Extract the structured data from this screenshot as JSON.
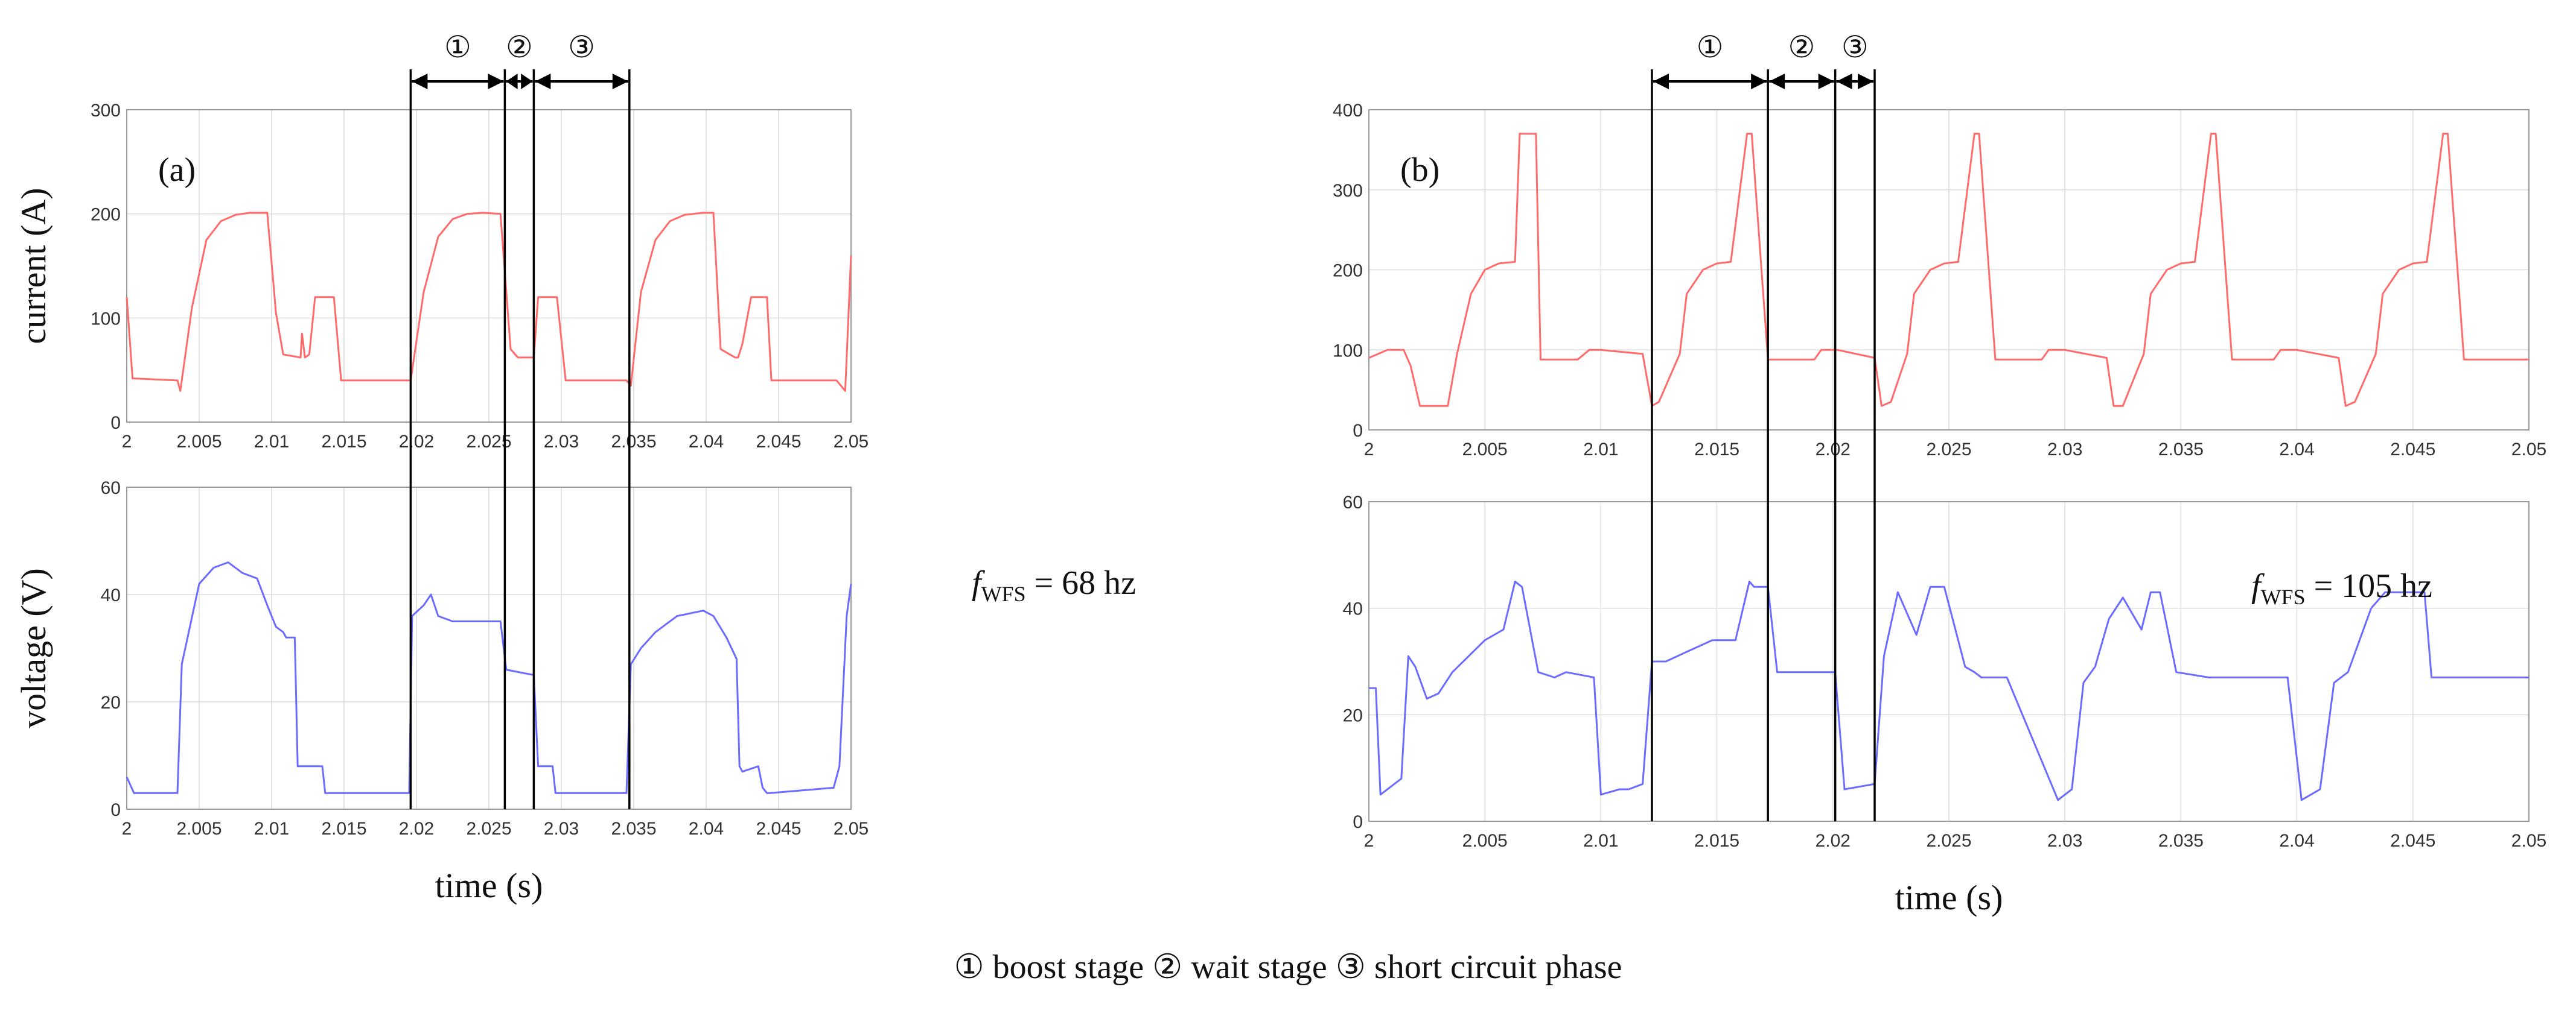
{
  "legend": {
    "items": [
      {
        "symbol": "①",
        "text": "boost stage"
      },
      {
        "symbol": "②",
        "text": "wait stage"
      },
      {
        "symbol": "③",
        "text": "short circuit phase"
      }
    ]
  },
  "colors": {
    "current": "#ff6b6b",
    "voltage": "#6b6bff",
    "marker": "#000000"
  },
  "chart_data": [
    {
      "type": "line",
      "panel": "(a)",
      "title": "",
      "xlabel": "time (s)",
      "freq_symbol": "f",
      "freq_sub": "WFS",
      "freq_value": "= 68 hz",
      "x_range": [
        2.0,
        2.05
      ],
      "x_ticks": [
        2.0,
        2.005,
        2.01,
        2.015,
        2.02,
        2.025,
        2.03,
        2.035,
        2.04,
        2.045,
        2.05
      ],
      "x_tick_labels": [
        "2",
        "2.005",
        "2.01",
        "2.015",
        "2.02",
        "2.025",
        "2.03",
        "2.035",
        "2.04",
        "2.045",
        "2.05"
      ],
      "stage_markers": [
        2.0196,
        2.0261,
        2.0281,
        2.0347
      ],
      "stage_labels": [
        "①",
        "②",
        "③"
      ],
      "current": {
        "ylabel": "current (A)",
        "ylim": [
          0,
          300
        ],
        "y_ticks": [
          0,
          100,
          200,
          300
        ],
        "y_tick_labels": [
          "0",
          "100",
          "200",
          "300"
        ],
        "x": [
          2.0,
          2.0004,
          2.0035,
          2.0037,
          2.0045,
          2.0055,
          2.0065,
          2.0075,
          2.0085,
          2.0097,
          2.0103,
          2.0108,
          2.012,
          2.0121,
          2.0123,
          2.0126,
          2.013,
          2.0133,
          2.014,
          2.0143,
          2.0148,
          2.0196,
          2.0205,
          2.0215,
          2.0225,
          2.0235,
          2.0246,
          2.0258,
          2.0265,
          2.027,
          2.0281,
          2.0284,
          2.0294,
          2.0297,
          2.0303,
          2.0345,
          2.0348,
          2.0355,
          2.0365,
          2.0375,
          2.0385,
          2.0398,
          2.0405,
          2.041,
          2.042,
          2.0422,
          2.0425,
          2.0431,
          2.0434,
          2.0442,
          2.0445,
          2.045,
          2.049,
          2.0496,
          2.05
        ],
        "values": [
          120,
          42,
          40,
          30,
          110,
          175,
          193,
          199,
          201,
          201,
          105,
          65,
          62,
          85,
          62,
          65,
          120,
          120,
          120,
          120,
          40,
          40,
          125,
          178,
          195,
          200,
          201,
          200,
          70,
          62,
          62,
          120,
          120,
          120,
          40,
          40,
          35,
          125,
          175,
          193,
          199,
          201,
          201,
          70,
          62,
          62,
          75,
          120,
          120,
          120,
          40,
          40,
          40,
          30,
          160
        ]
      },
      "voltage": {
        "ylabel": "voltage (V)",
        "ylim": [
          0,
          60
        ],
        "y_ticks": [
          0,
          20,
          40,
          60
        ],
        "y_tick_labels": [
          "0",
          "20",
          "40",
          "60"
        ],
        "x": [
          2.0,
          2.0005,
          2.0035,
          2.0038,
          2.0042,
          2.005,
          2.006,
          2.007,
          2.008,
          2.009,
          2.0097,
          2.0103,
          2.0108,
          2.011,
          2.0116,
          2.0118,
          2.0121,
          2.0122,
          2.0135,
          2.0137,
          2.0145,
          2.0195,
          2.0197,
          2.0205,
          2.021,
          2.0215,
          2.0225,
          2.0258,
          2.0262,
          2.0281,
          2.0284,
          2.0294,
          2.0296,
          2.0345,
          2.0348,
          2.0355,
          2.0365,
          2.038,
          2.0398,
          2.0405,
          2.0414,
          2.0421,
          2.0423,
          2.0425,
          2.0436,
          2.0439,
          2.0442,
          2.0444,
          2.0488,
          2.0492,
          2.0497,
          2.05
        ],
        "values": [
          6,
          3,
          3,
          27,
          32,
          42,
          45,
          46,
          44,
          43,
          38,
          34,
          33,
          32,
          32,
          8,
          8,
          8,
          8,
          3,
          3,
          3,
          36,
          38,
          40,
          36,
          35,
          35,
          26,
          25,
          8,
          8,
          3,
          3,
          27,
          30,
          33,
          36,
          37,
          36,
          32,
          28,
          8,
          7,
          8,
          4,
          3,
          3,
          4,
          8,
          36,
          42
        ]
      }
    },
    {
      "type": "line",
      "panel": "(b)",
      "title": "",
      "xlabel": "time (s)",
      "freq_symbol": "f",
      "freq_sub": "WFS",
      "freq_value": "= 105 hz",
      "x_range": [
        2.0,
        2.05
      ],
      "x_ticks": [
        2.0,
        2.005,
        2.01,
        2.015,
        2.02,
        2.025,
        2.03,
        2.035,
        2.04,
        2.045,
        2.05
      ],
      "x_tick_labels": [
        "2",
        "2.005",
        "2.01",
        "2.015",
        "2.02",
        "2.025",
        "2.03",
        "2.035",
        "2.04",
        "2.045",
        "2.05"
      ],
      "stage_markers": [
        2.0122,
        2.0172,
        2.0201,
        2.0218
      ],
      "stage_labels": [
        "①",
        "②",
        "③"
      ],
      "current": {
        "ylabel": "",
        "ylim": [
          0,
          400
        ],
        "y_ticks": [
          0,
          100,
          200,
          300,
          400
        ],
        "y_tick_labels": [
          "0",
          "100",
          "200",
          "300",
          "400"
        ],
        "x": [
          2.0,
          2.0008,
          2.0015,
          2.0018,
          2.0022,
          2.0034,
          2.0038,
          2.0044,
          2.005,
          2.0056,
          2.0063,
          2.0065,
          2.0072,
          2.0074,
          2.009,
          2.0095,
          2.01,
          2.0118,
          2.0122,
          2.0125,
          2.0134,
          2.0137,
          2.0144,
          2.015,
          2.0156,
          2.0163,
          2.0165,
          2.0172,
          2.0174,
          2.0192,
          2.0195,
          2.0202,
          2.0218,
          2.0221,
          2.0225,
          2.0232,
          2.0235,
          2.0242,
          2.0248,
          2.0254,
          2.0261,
          2.0263,
          2.027,
          2.0272,
          2.029,
          2.0293,
          2.03,
          2.0318,
          2.0321,
          2.0325,
          2.0334,
          2.0337,
          2.0344,
          2.035,
          2.0356,
          2.0363,
          2.0365,
          2.0372,
          2.0374,
          2.039,
          2.0393,
          2.04,
          2.0418,
          2.0421,
          2.0425,
          2.0434,
          2.0437,
          2.0444,
          2.045,
          2.0456,
          2.0463,
          2.0465,
          2.0472,
          2.0474,
          2.05
        ],
        "values": [
          90,
          100,
          100,
          80,
          30,
          30,
          95,
          170,
          200,
          208,
          210,
          370,
          370,
          88,
          88,
          100,
          100,
          95,
          30,
          35,
          95,
          170,
          200,
          208,
          210,
          370,
          370,
          88,
          88,
          88,
          100,
          100,
          90,
          30,
          35,
          95,
          170,
          200,
          208,
          210,
          370,
          370,
          88,
          88,
          88,
          100,
          100,
          90,
          30,
          30,
          95,
          170,
          200,
          208,
          210,
          370,
          370,
          88,
          88,
          88,
          100,
          100,
          90,
          30,
          35,
          95,
          170,
          200,
          208,
          210,
          370,
          370,
          88,
          88,
          88
        ]
      },
      "voltage": {
        "ylabel": "",
        "ylim": [
          0,
          60
        ],
        "y_ticks": [
          0,
          20,
          40,
          60
        ],
        "y_tick_labels": [
          "0",
          "20",
          "40",
          "60"
        ],
        "x": [
          2.0,
          2.0003,
          2.0005,
          2.0014,
          2.0017,
          2.002,
          2.0025,
          2.003,
          2.0036,
          2.0043,
          2.005,
          2.0058,
          2.0063,
          2.0066,
          2.0073,
          2.008,
          2.0085,
          2.0097,
          2.01,
          2.0108,
          2.0112,
          2.0118,
          2.0122,
          2.0128,
          2.0138,
          2.0148,
          2.0158,
          2.0164,
          2.0166,
          2.0172,
          2.0176,
          2.0201,
          2.0205,
          2.0218,
          2.0222,
          2.0228,
          2.0236,
          2.0242,
          2.0248,
          2.0257,
          2.0261,
          2.0264,
          2.0268,
          2.0275,
          2.0297,
          2.0303,
          2.0308,
          2.0313,
          2.0319,
          2.0325,
          2.0333,
          2.0337,
          2.0341,
          2.0348,
          2.0362,
          2.0372,
          2.0396,
          2.0402,
          2.041,
          2.0416,
          2.0422,
          2.0432,
          2.0438,
          2.0455,
          2.0458,
          2.0462,
          2.0466,
          2.0478,
          2.05
        ],
        "values": [
          25,
          25,
          5,
          8,
          31,
          29,
          23,
          24,
          28,
          31,
          34,
          36,
          45,
          44,
          28,
          27,
          28,
          27,
          5,
          6,
          6,
          7,
          30,
          30,
          32,
          34,
          34,
          45,
          44,
          44,
          28,
          28,
          6,
          7,
          31,
          43,
          35,
          44,
          44,
          29,
          28,
          27,
          27,
          27,
          4,
          6,
          26,
          29,
          38,
          42,
          36,
          43,
          43,
          28,
          27,
          27,
          27,
          4,
          6,
          26,
          28,
          40,
          43,
          43,
          27,
          27,
          27,
          27,
          27
        ]
      }
    }
  ]
}
